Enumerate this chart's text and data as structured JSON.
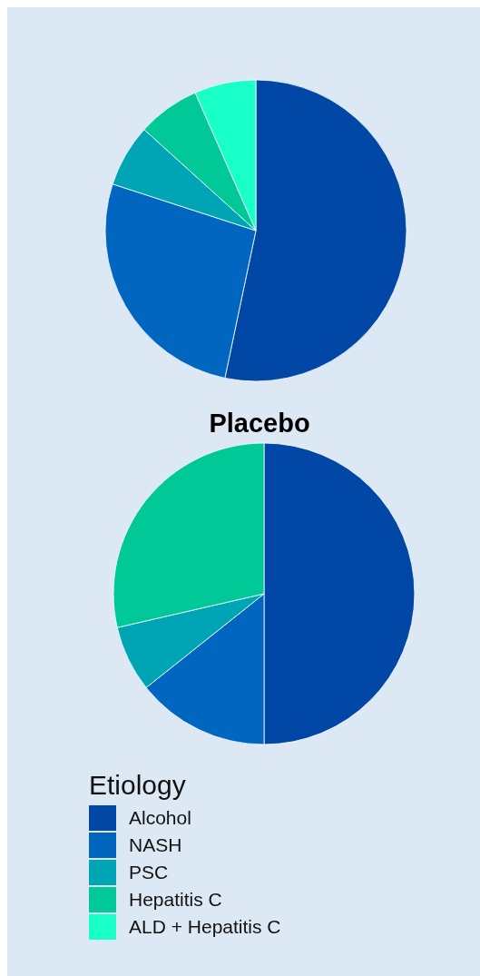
{
  "chart_data": [
    {
      "type": "pie",
      "categories": [
        null,
        null,
        null,
        null,
        null
      ],
      "values": [
        53.3,
        26.7,
        6.7,
        6.7,
        6.6
      ],
      "colors": [
        "#0047a6",
        "#0066c0",
        "#00a5b5",
        "#00c896",
        "#18ffc8"
      ]
    },
    {
      "type": "pie",
      "title": "Placebo",
      "categories": [
        "Alcohol",
        "NASH",
        "PSC",
        "Hepatitis C",
        "ALD + Hepatitis C"
      ],
      "values": [
        50,
        14.3,
        7.1,
        28.6,
        0
      ],
      "colors": [
        "#0047a6",
        "#0066c0",
        "#00a5b5",
        "#00c896",
        "#18ffc8"
      ],
      "legend": "bottom",
      "legend_title": "Etiology"
    }
  ]
}
